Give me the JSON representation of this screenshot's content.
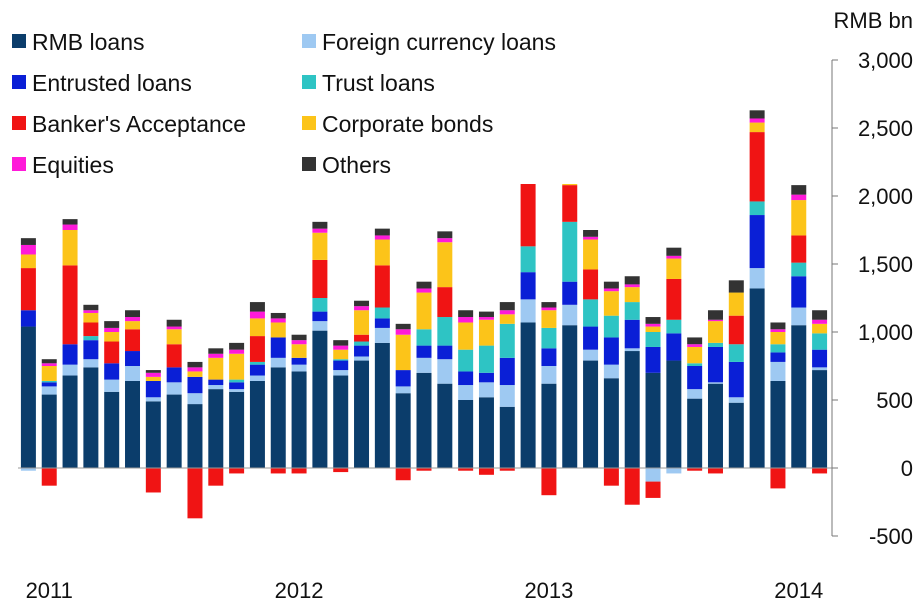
{
  "chart_data": {
    "type": "bar",
    "stacked": true,
    "unit_label": "RMB bn",
    "ylim": [
      -500,
      3000
    ],
    "yticks": [
      3000,
      2500,
      2000,
      1500,
      1000,
      500,
      0,
      -500
    ],
    "ytick_labels": [
      "3,000",
      "2,500",
      "2,000",
      "1,500",
      "1,000",
      "500",
      "0",
      "-500"
    ],
    "y_axis_position": "right",
    "grid": false,
    "legend_placement": "top-left",
    "x_labels": [
      {
        "text": "2011",
        "at_index": 1
      },
      {
        "text": "2012",
        "at_index": 13
      },
      {
        "text": "2013",
        "at_index": 25
      },
      {
        "text": "2014",
        "at_index": 37
      }
    ],
    "categories": [
      "2011-01",
      "2011-02",
      "2011-03",
      "2011-04",
      "2011-05",
      "2011-06",
      "2011-07",
      "2011-08",
      "2011-09",
      "2011-10",
      "2011-11",
      "2011-12",
      "2012-01",
      "2012-02",
      "2012-03",
      "2012-04",
      "2012-05",
      "2012-06",
      "2012-07",
      "2012-08",
      "2012-09",
      "2012-10",
      "2012-11",
      "2012-12",
      "2013-01",
      "2013-02",
      "2013-03",
      "2013-04",
      "2013-05",
      "2013-06",
      "2013-07",
      "2013-08",
      "2013-09",
      "2013-10",
      "2013-11",
      "2013-12",
      "2014-01",
      "2014-02",
      "2014-03"
    ],
    "series": [
      {
        "name": "RMB loans",
        "color": "#0b3d6b",
        "values": [
          1040,
          540,
          680,
          740,
          560,
          640,
          490,
          540,
          470,
          580,
          560,
          640,
          740,
          710,
          1010,
          680,
          790,
          920,
          550,
          700,
          620,
          500,
          520,
          450,
          1070,
          620,
          1050,
          790,
          660,
          860,
          700,
          790,
          510,
          620,
          480,
          1320,
          640,
          1050,
          720
        ]
      },
      {
        "name": "Foreign currency loans",
        "color": "#9ec9f2",
        "values": [
          -20,
          60,
          80,
          60,
          90,
          110,
          30,
          90,
          80,
          30,
          20,
          40,
          70,
          50,
          70,
          40,
          30,
          110,
          50,
          110,
          180,
          110,
          110,
          160,
          170,
          130,
          150,
          80,
          100,
          20,
          -100,
          -40,
          70,
          10,
          40,
          150,
          140,
          130,
          20
        ]
      },
      {
        "name": "Entrusted loans",
        "color": "#0a1fd6",
        "values": [
          120,
          30,
          150,
          140,
          120,
          110,
          120,
          110,
          120,
          40,
          50,
          80,
          150,
          50,
          70,
          70,
          80,
          70,
          120,
          90,
          100,
          100,
          70,
          200,
          200,
          130,
          170,
          170,
          200,
          210,
          190,
          200,
          170,
          260,
          260,
          390,
          70,
          230,
          130
        ]
      },
      {
        "name": "Trust loans",
        "color": "#2ec4c4",
        "values": [
          0,
          10,
          0,
          30,
          0,
          0,
          0,
          0,
          0,
          0,
          20,
          20,
          0,
          0,
          100,
          10,
          30,
          80,
          0,
          120,
          210,
          160,
          200,
          250,
          190,
          150,
          440,
          200,
          160,
          130,
          110,
          100,
          20,
          30,
          130,
          100,
          60,
          100,
          120
        ]
      },
      {
        "name": "Banker's Acceptance",
        "color": "#f01414",
        "values": [
          310,
          -130,
          580,
          100,
          160,
          160,
          -180,
          170,
          -370,
          -130,
          -40,
          190,
          -40,
          -40,
          280,
          -30,
          50,
          310,
          -90,
          -20,
          220,
          -20,
          -50,
          -20,
          590,
          -200,
          270,
          220,
          -130,
          -270,
          -120,
          300,
          -20,
          -40,
          210,
          510,
          -150,
          200,
          -40
        ]
      },
      {
        "name": "Corporate bonds",
        "color": "#fcc419",
        "values": [
          100,
          110,
          260,
          70,
          70,
          60,
          30,
          110,
          40,
          160,
          190,
          130,
          110,
          100,
          200,
          70,
          180,
          190,
          260,
          270,
          330,
          200,
          190,
          70,
          210,
          130,
          390,
          220,
          180,
          110,
          40,
          150,
          120,
          160,
          170,
          70,
          90,
          260,
          70
        ]
      },
      {
        "name": "Equities",
        "color": "#ff1ad9",
        "values": [
          70,
          20,
          40,
          20,
          30,
          30,
          30,
          20,
          30,
          30,
          30,
          50,
          30,
          30,
          30,
          30,
          30,
          30,
          40,
          30,
          30,
          40,
          20,
          30,
          30,
          20,
          20,
          20,
          20,
          20,
          20,
          20,
          20,
          10,
          0,
          30,
          20,
          40,
          30
        ]
      },
      {
        "name": "Others",
        "color": "#333333",
        "values": [
          50,
          30,
          40,
          40,
          50,
          50,
          20,
          50,
          40,
          40,
          50,
          70,
          40,
          40,
          50,
          40,
          40,
          50,
          40,
          50,
          50,
          50,
          40,
          60,
          70,
          40,
          60,
          50,
          50,
          60,
          50,
          60,
          50,
          70,
          90,
          60,
          50,
          70,
          70
        ]
      }
    ]
  }
}
